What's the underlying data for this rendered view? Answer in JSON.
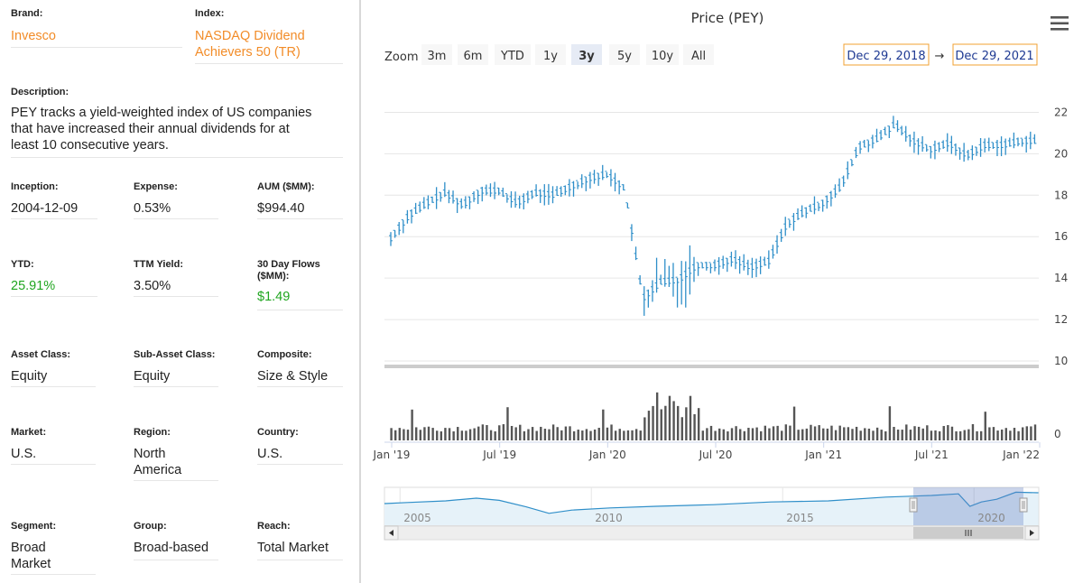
{
  "info": {
    "brand": {
      "label": "Brand:",
      "value": "Invesco"
    },
    "index": {
      "label": "Index:",
      "value": "NASDAQ Dividend Achievers 50 (TR)",
      "line1": "NASDAQ Dividend",
      "line2": "Achievers 50 (TR)"
    },
    "description": {
      "label": "Description:",
      "line1": "PEY tracks a yield-weighted index of US companies",
      "line2": "that have increased their annual dividends for at",
      "line3": "least 10 consecutive years."
    },
    "inception": {
      "label": "Inception:",
      "value": "2004-12-09"
    },
    "expense": {
      "label": "Expense:",
      "value": "0.53%"
    },
    "aum": {
      "label": "AUM ($MM):",
      "value": "$994.40"
    },
    "ytd": {
      "label": "YTD:",
      "value": "25.91%"
    },
    "ttm_yield": {
      "label": "TTM Yield:",
      "value": "3.50%"
    },
    "flows": {
      "label_line1": "30 Day Flows",
      "label_line2": "($MM):",
      "value": "$1.49"
    },
    "asset_class": {
      "label": "Asset Class:",
      "value": "Equity"
    },
    "sub_asset_class": {
      "label": "Sub-Asset Class:",
      "value": "Equity"
    },
    "composite": {
      "label": "Composite:",
      "value": "Size & Style"
    },
    "market": {
      "label": "Market:",
      "value": "U.S."
    },
    "region": {
      "label": "Region:",
      "line1": "North",
      "line2": "America"
    },
    "country": {
      "label": "Country:",
      "value": "U.S."
    },
    "segment": {
      "label": "Segment:",
      "line1": "Broad",
      "line2": "Market"
    },
    "group": {
      "label": "Group:",
      "value": "Broad-based"
    },
    "reach": {
      "label": "Reach:",
      "value": "Total Market"
    }
  },
  "chart": {
    "title": "Price (PEY)",
    "zoom_label": "Zoom",
    "zoom_buttons": [
      "3m",
      "6m",
      "YTD",
      "1y",
      "3y",
      "5y",
      "10y",
      "All"
    ],
    "zoom_selected": "3y",
    "range_from": "Dec 29, 2018",
    "range_arrow": "→",
    "range_to": "Dec 29, 2021",
    "menu_icon": "hamburger-menu-icon",
    "colors": {
      "price": "#2f8fc9",
      "volume": "#555555",
      "navigator_fill": "#e6f2f9",
      "navigator_selection": "#c7d6ee",
      "zoom_selected_bg": "#e6ebf5"
    }
  },
  "chart_data": {
    "type": "ohlc",
    "title": "Price (PEY)",
    "price_axis": {
      "ticks": [
        10,
        12,
        14,
        16,
        18,
        20,
        22
      ],
      "range": [
        10,
        23.5
      ]
    },
    "volume_axis": {
      "ticks": [
        0
      ]
    },
    "x_ticks": [
      "Jan '19",
      "Jul '19",
      "Jan '20",
      "Jul '20",
      "Jan '21",
      "Jul '21",
      "Jan '22"
    ],
    "x_range": [
      "2018-12-29",
      "2021-12-29"
    ],
    "price_series": [
      [
        "2019-01",
        15.9
      ],
      [
        "2019-02",
        17.0
      ],
      [
        "2019-03",
        17.6
      ],
      [
        "2019-04",
        18.1
      ],
      [
        "2019-05",
        17.5
      ],
      [
        "2019-06",
        18.2
      ],
      [
        "2019-07",
        18.2
      ],
      [
        "2019-08",
        17.6
      ],
      [
        "2019-09",
        18.1
      ],
      [
        "2019-10",
        18.0
      ],
      [
        "2019-11",
        18.4
      ],
      [
        "2019-12",
        18.8
      ],
      [
        "2020-01",
        19.0
      ],
      [
        "2020-02",
        18.3
      ],
      [
        "2020-03",
        13.0
      ],
      [
        "2020-04",
        13.8
      ],
      [
        "2020-05",
        13.9
      ],
      [
        "2020-06",
        14.6
      ],
      [
        "2020-07",
        14.6
      ],
      [
        "2020-08",
        14.9
      ],
      [
        "2020-09",
        14.5
      ],
      [
        "2020-10",
        14.8
      ],
      [
        "2020-11",
        16.6
      ],
      [
        "2020-12",
        17.2
      ],
      [
        "2021-01",
        17.6
      ],
      [
        "2021-02",
        18.4
      ],
      [
        "2021-03",
        20.3
      ],
      [
        "2021-04",
        20.7
      ],
      [
        "2021-05",
        21.4
      ],
      [
        "2021-06",
        20.6
      ],
      [
        "2021-07",
        20.2
      ],
      [
        "2021-08",
        20.5
      ],
      [
        "2021-09",
        19.9
      ],
      [
        "2021-10",
        20.4
      ],
      [
        "2021-11",
        20.4
      ],
      [
        "2021-12",
        20.6
      ]
    ],
    "navigator": {
      "x_ticks": [
        "2005",
        "2010",
        "2015",
        "2020"
      ]
    }
  }
}
